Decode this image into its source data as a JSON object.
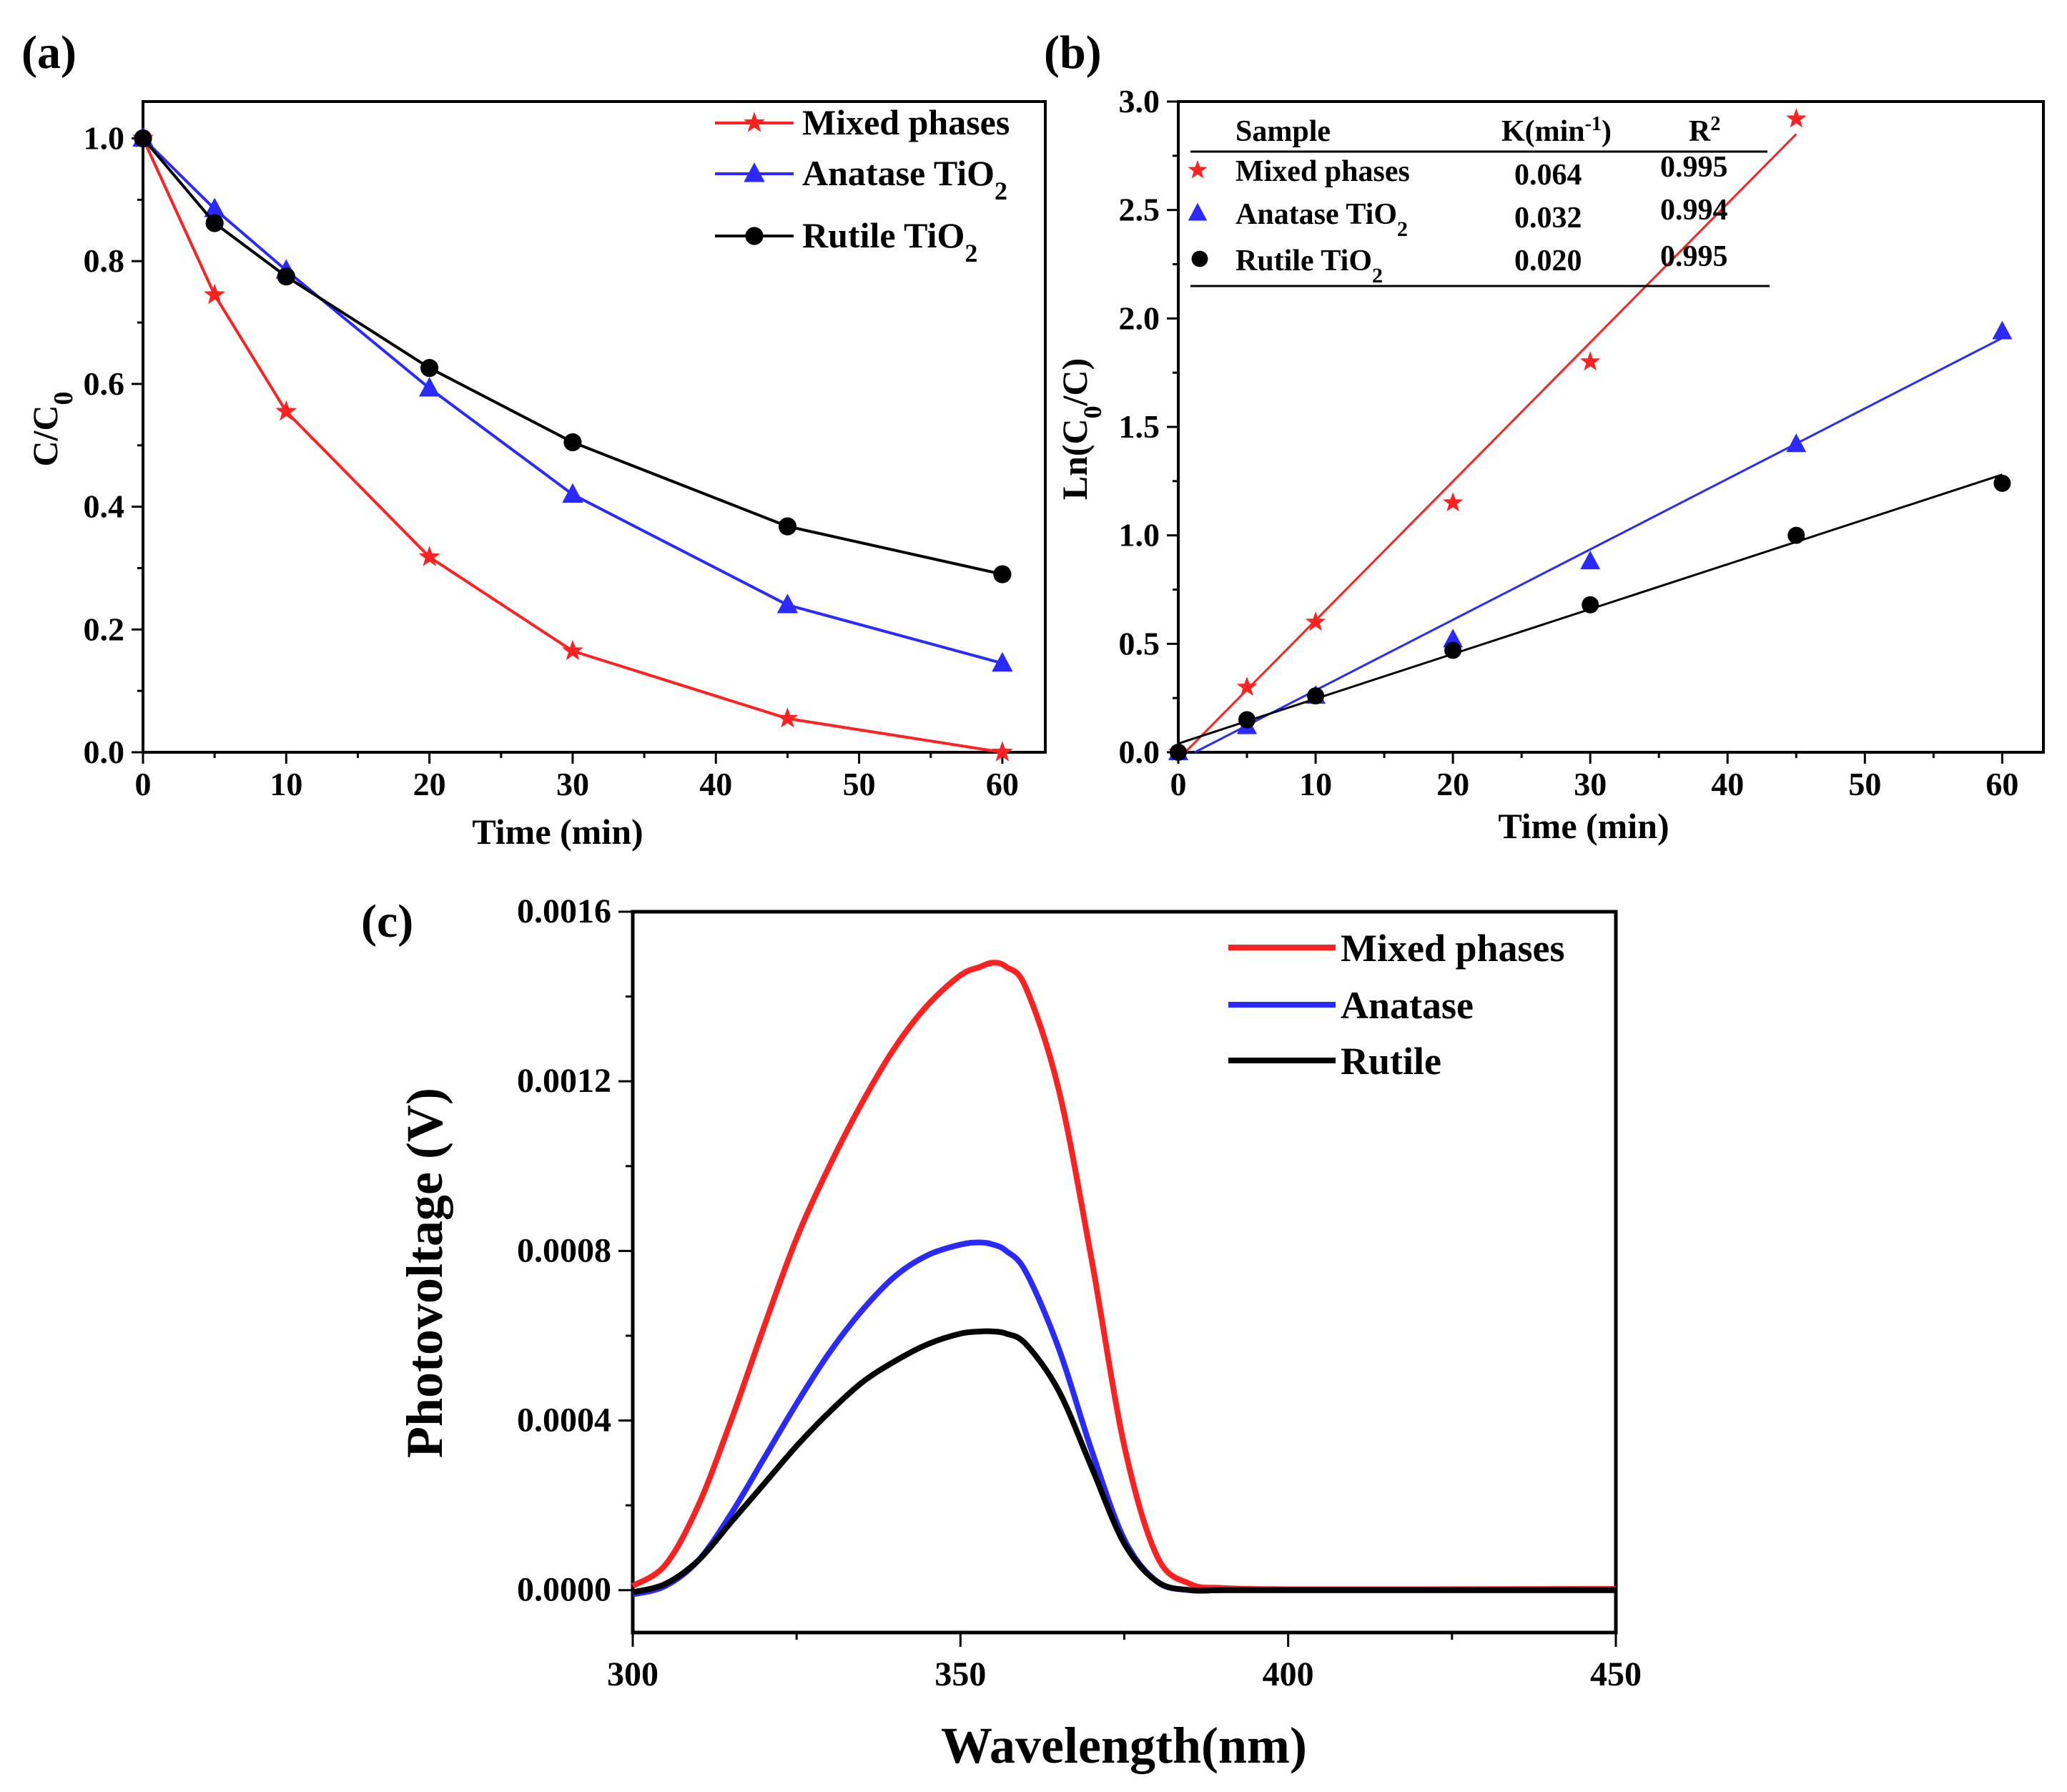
{
  "colors": {
    "red": "#ff2020",
    "blue": "#2a2aff",
    "black": "#000000"
  },
  "chart_data": [
    {
      "panel": "(a)",
      "type": "line",
      "xlabel": "Time (min)",
      "ylabel": "C/C0",
      "ylabel_main": "C/C",
      "ylabel_sub": "0",
      "xlim": [
        0,
        63
      ],
      "ylim": [
        0,
        1.06
      ],
      "xticks": [
        0,
        10,
        20,
        30,
        40,
        50,
        60
      ],
      "yticks": [
        0.0,
        0.2,
        0.4,
        0.6,
        0.8,
        1.0
      ],
      "x": [
        0,
        5,
        10,
        20,
        30,
        45,
        60
      ],
      "series": [
        {
          "name": "Mixed phases",
          "name_main": "Mixed phases",
          "name_sub": "",
          "marker": "star",
          "color": "#ff2020",
          "values": [
            1.0,
            0.745,
            0.555,
            0.318,
            0.165,
            0.055,
            0.0
          ]
        },
        {
          "name": "Anatase TiO2",
          "name_main": "Anatase TiO",
          "name_sub": "2",
          "marker": "triangle",
          "color": "#2a2aff",
          "values": [
            1.0,
            0.885,
            0.785,
            0.593,
            0.42,
            0.24,
            0.145
          ]
        },
        {
          "name": "Rutile TiO2",
          "name_main": "Rutile TiO",
          "name_sub": "2",
          "marker": "circle",
          "color": "#000000",
          "values": [
            1.0,
            0.862,
            0.775,
            0.626,
            0.505,
            0.368,
            0.29
          ]
        }
      ]
    },
    {
      "panel": "(b)",
      "type": "scatter",
      "xlabel": "Time (min)",
      "ylabel": "Ln(C0/C)",
      "ylabel_pre": "Ln(C",
      "ylabel_sub": "0",
      "ylabel_post": "/C)",
      "xlim": [
        0,
        63
      ],
      "ylim": [
        0,
        3.0
      ],
      "xticks": [
        0,
        10,
        20,
        30,
        40,
        50,
        60
      ],
      "yticks": [
        0.0,
        0.5,
        1.0,
        1.5,
        2.0,
        2.5,
        3.0
      ],
      "x": [
        0,
        5,
        10,
        20,
        30,
        45,
        60
      ],
      "series": [
        {
          "name": "Mixed phases",
          "marker": "star",
          "color": "#ff2020",
          "values": [
            0,
            0.3,
            0.6,
            1.15,
            1.8,
            2.92,
            null
          ],
          "fit": [
            [
              0.5,
              0
            ],
            [
              45,
              2.85
            ]
          ]
        },
        {
          "name": "Anatase TiO2",
          "marker": "triangle",
          "color": "#2a2aff",
          "values": [
            0,
            0.12,
            0.26,
            0.52,
            0.88,
            1.42,
            1.94
          ],
          "fit": [
            [
              1.2,
              0
            ],
            [
              60,
              1.91
            ]
          ]
        },
        {
          "name": "Rutile TiO2",
          "marker": "circle",
          "color": "#000000",
          "values": [
            0,
            0.15,
            0.26,
            0.47,
            0.68,
            1.0,
            1.24
          ],
          "fit": [
            [
              0,
              0.04
            ],
            [
              60,
              1.28
            ]
          ]
        }
      ],
      "table": {
        "headers": {
          "sample": "Sample",
          "k_pre": "K(min",
          "k_sup": "-1",
          "k_post": ")",
          "r_main": "R",
          "r_sup": "2"
        },
        "rows": [
          {
            "name_main": "Mixed phases",
            "name_sub": "",
            "k": "0.064",
            "r2": "0.995",
            "marker": "star",
            "color": "#ff2020"
          },
          {
            "name_main": "Anatase TiO",
            "name_sub": "2",
            "k": "0.032",
            "r2": "0.994",
            "marker": "triangle",
            "color": "#2a2aff"
          },
          {
            "name_main": "Rutile TiO",
            "name_sub": "2",
            "k": "0.020",
            "r2": "0.995",
            "marker": "circle",
            "color": "#000000"
          }
        ]
      }
    },
    {
      "panel": "(c)",
      "type": "line",
      "xlabel": "Wavelength(nm)",
      "ylabel": "Photovoltage (V)",
      "xlim": [
        300,
        450
      ],
      "ylim": [
        -0.0001,
        0.0016
      ],
      "xticks": [
        300,
        350,
        400,
        450
      ],
      "yticks": [
        "0.0000",
        "0.0004",
        "0.0008",
        "0.0012",
        "0.0016"
      ],
      "x": [
        300,
        305,
        310,
        315,
        320,
        325,
        330,
        335,
        340,
        345,
        350,
        353,
        355,
        357,
        360,
        365,
        370,
        375,
        380,
        385,
        390,
        400,
        420,
        450
      ],
      "series": [
        {
          "name": "Mixed phases",
          "color": "#ff2020",
          "values": [
            1e-05,
            6e-05,
            0.0002,
            0.0004,
            0.00062,
            0.00083,
            0.001,
            0.00115,
            0.00128,
            0.00138,
            0.00145,
            0.00147,
            0.00148,
            0.00147,
            0.00142,
            0.00118,
            0.00078,
            0.00034,
            8e-05,
            1.5e-05,
            5e-06,
            2e-06,
            2e-06,
            3e-06
          ]
        },
        {
          "name": "Anatase",
          "color": "#2a2aff",
          "values": [
            -1e-05,
            1e-05,
            7e-05,
            0.00018,
            0.00031,
            0.00044,
            0.00056,
            0.00066,
            0.00074,
            0.00079,
            0.000815,
            0.00082,
            0.000815,
            0.0008,
            0.00075,
            0.00057,
            0.00033,
            0.00012,
            2e-05,
            0.0,
            0.0,
            0.0,
            0.0,
            0.0
          ]
        },
        {
          "name": "Rutile",
          "color": "#000000",
          "values": [
            -5e-06,
            1.5e-05,
            7e-05,
            0.00016,
            0.00025,
            0.00034,
            0.00042,
            0.00049,
            0.00054,
            0.00058,
            0.000605,
            0.00061,
            0.00061,
            0.000605,
            0.00058,
            0.00047,
            0.00029,
            0.00011,
            2e-05,
            0.0,
            0.0,
            0.0,
            0.0,
            0.0
          ]
        }
      ]
    }
  ]
}
